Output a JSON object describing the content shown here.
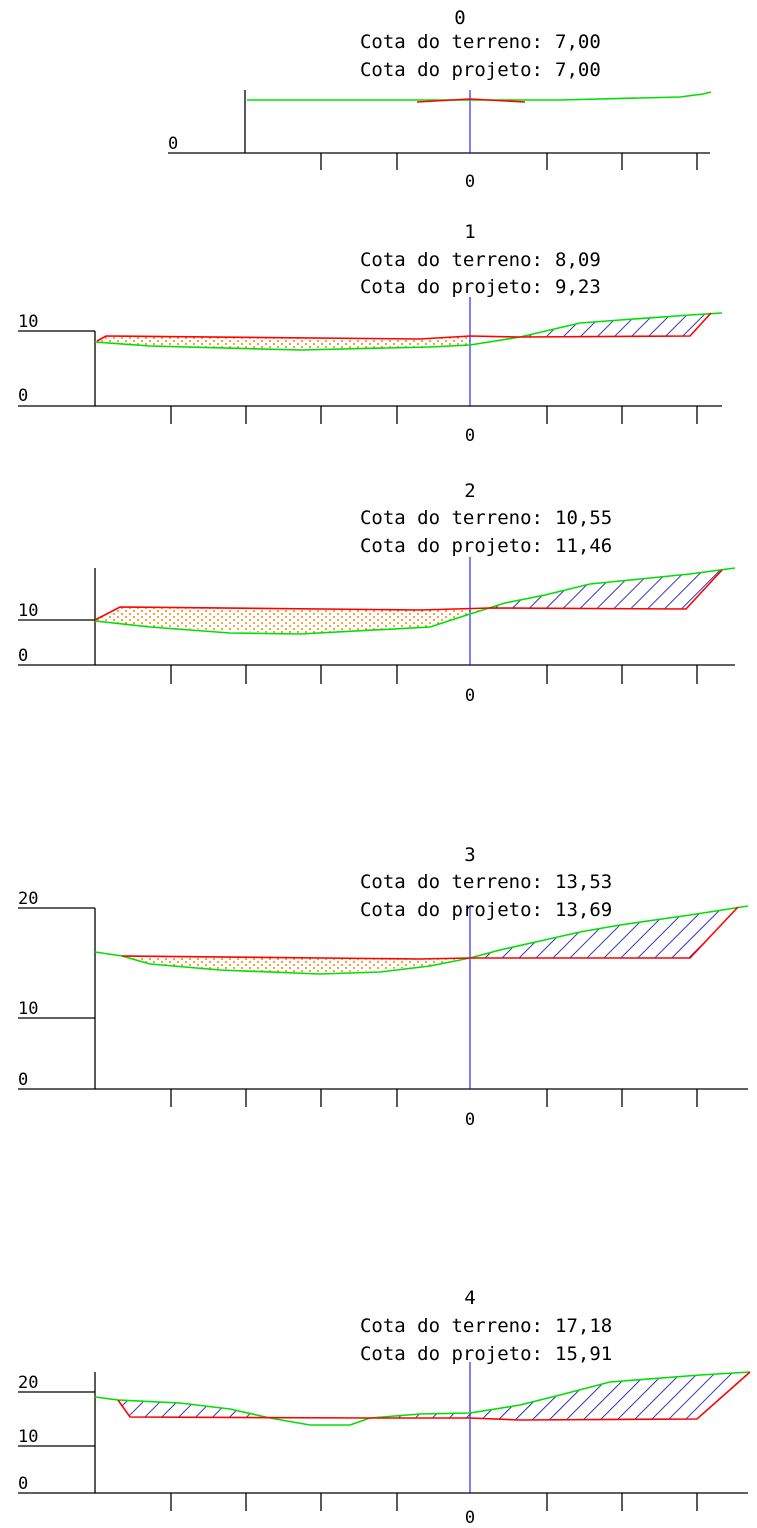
{
  "colors": {
    "terrain": "#00e000",
    "project": "#ff0000",
    "centerline": "#0000ff",
    "cut_hatch": "#0000aa",
    "fill_dots": "#ff8000",
    "axis": "#000000"
  },
  "sections": [
    {
      "number": "0",
      "terrain_label": "Cota do terreno:",
      "terrain_value": "7,00",
      "project_label": "Cota do projeto:",
      "project_value": "7,00",
      "elev_labels": [
        "0"
      ],
      "center_label": "0"
    },
    {
      "number": "1",
      "terrain_label": "Cota do terreno:",
      "terrain_value": "8,09",
      "project_label": "Cota do projeto:",
      "project_value": "9,23",
      "elev_labels": [
        "0",
        "10"
      ],
      "center_label": "0"
    },
    {
      "number": "2",
      "terrain_label": "Cota do terreno:",
      "terrain_value": "10,55",
      "project_label": "Cota do projeto:",
      "project_value": "11,46",
      "elev_labels": [
        "0",
        "10"
      ],
      "center_label": "0"
    },
    {
      "number": "3",
      "terrain_label": "Cota do terreno:",
      "terrain_value": "13,53",
      "project_label": "Cota do projeto:",
      "project_value": "13,69",
      "elev_labels": [
        "0",
        "10",
        "20"
      ],
      "center_label": "0"
    },
    {
      "number": "4",
      "terrain_label": "Cota do terreno:",
      "terrain_value": "17,18",
      "project_label": "Cota do projeto:",
      "project_value": "15,91",
      "elev_labels": [
        "0",
        "10",
        "20"
      ],
      "center_label": "0"
    }
  ]
}
